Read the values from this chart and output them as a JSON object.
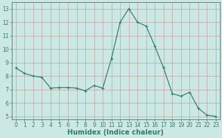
{
  "x": [
    0,
    1,
    2,
    3,
    4,
    5,
    6,
    7,
    8,
    9,
    10,
    11,
    12,
    13,
    14,
    15,
    16,
    17,
    18,
    19,
    20,
    21,
    22,
    23
  ],
  "y": [
    8.6,
    8.2,
    8.0,
    7.9,
    7.1,
    7.15,
    7.15,
    7.1,
    6.9,
    7.3,
    7.1,
    9.3,
    12.0,
    13.0,
    12.0,
    11.7,
    10.2,
    8.6,
    6.7,
    6.5,
    6.8,
    5.6,
    5.1,
    5.0
  ],
  "line_color": "#2e7d6e",
  "marker": "+",
  "marker_size": 3,
  "bg_color": "#cce8e4",
  "grid_color": "#c0a0a0",
  "xlabel": "Humidex (Indice chaleur)",
  "ylim": [
    4.8,
    13.5
  ],
  "xlim": [
    -0.5,
    23.5
  ],
  "yticks": [
    5,
    6,
    7,
    8,
    9,
    10,
    11,
    12,
    13
  ],
  "xticks": [
    0,
    1,
    2,
    3,
    4,
    5,
    6,
    7,
    8,
    9,
    10,
    11,
    12,
    13,
    14,
    15,
    16,
    17,
    18,
    19,
    20,
    21,
    22,
    23
  ],
  "tick_label_fontsize": 5.5,
  "xlabel_fontsize": 7.0,
  "linewidth": 0.9,
  "markeredgewidth": 0.8
}
